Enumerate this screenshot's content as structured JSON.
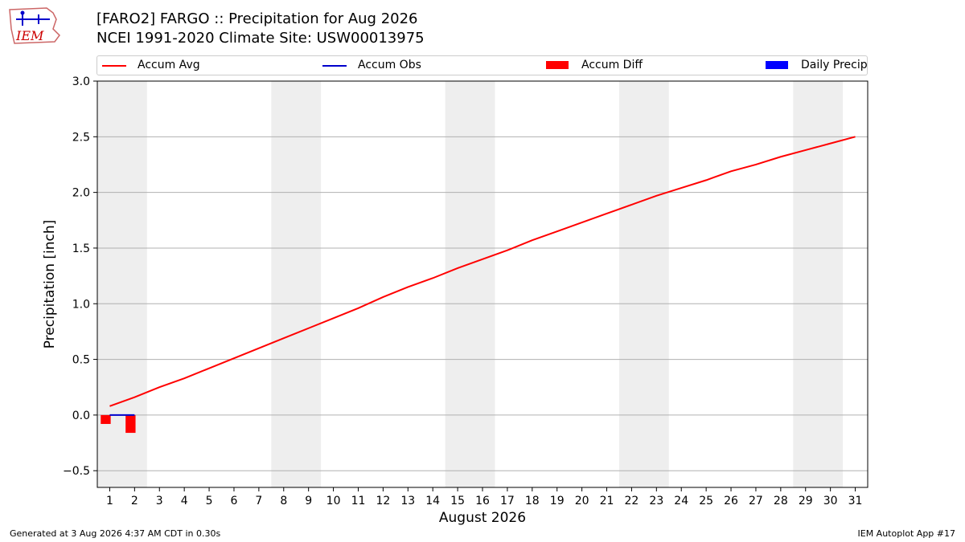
{
  "title_line1": "[FARO2] FARGO :: Precipitation for Aug 2026",
  "title_line2": "NCEI 1991-2020 Climate Site: USW00013975",
  "logo": {
    "text": "IEM",
    "color": "#cc0000",
    "accent": "#0000cc"
  },
  "legend": [
    {
      "label": "Accum Avg",
      "kind": "line",
      "color": "#ff0000"
    },
    {
      "label": "Accum Obs",
      "kind": "line",
      "color": "#0000cc"
    },
    {
      "label": "Accum Diff",
      "kind": "box",
      "color": "#ff0000"
    },
    {
      "label": "Daily Precip",
      "kind": "box",
      "color": "#0000ff"
    }
  ],
  "footer": {
    "left": "Generated at 3 Aug 2026 4:37 AM CDT in 0.30s",
    "right": "IEM Autoplot App #17"
  },
  "chart_data": {
    "type": "line",
    "xlabel": "August 2026",
    "ylabel": "Precipitation [inch]",
    "xlim": [
      0.5,
      31.5
    ],
    "ylim": [
      -0.65,
      3.0
    ],
    "x_ticks": [
      1,
      2,
      3,
      4,
      5,
      6,
      7,
      8,
      9,
      10,
      11,
      12,
      13,
      14,
      15,
      16,
      17,
      18,
      19,
      20,
      21,
      22,
      23,
      24,
      25,
      26,
      27,
      28,
      29,
      30,
      31
    ],
    "y_ticks": [
      -0.5,
      0.0,
      0.5,
      1.0,
      1.5,
      2.0,
      2.5,
      3.0
    ],
    "y_tick_labels": [
      "−0.5",
      "0.0",
      "0.5",
      "1.0",
      "1.5",
      "2.0",
      "2.5",
      "3.0"
    ],
    "grid": "horizontal",
    "legend_position": "top",
    "weekend_shading": {
      "color": "#eeeeee",
      "ranges": [
        [
          0.5,
          2.5
        ],
        [
          7.5,
          9.5
        ],
        [
          14.5,
          16.5
        ],
        [
          21.5,
          23.5
        ],
        [
          28.5,
          30.5
        ]
      ]
    },
    "series": [
      {
        "name": "Accum Avg",
        "type": "line",
        "color": "#ff0000",
        "x": [
          1,
          2,
          3,
          4,
          5,
          6,
          7,
          8,
          9,
          10,
          11,
          12,
          13,
          14,
          15,
          16,
          17,
          18,
          19,
          20,
          21,
          22,
          23,
          24,
          25,
          26,
          27,
          28,
          29,
          30,
          31
        ],
        "values": [
          0.08,
          0.16,
          0.25,
          0.33,
          0.42,
          0.51,
          0.6,
          0.69,
          0.78,
          0.87,
          0.96,
          1.06,
          1.15,
          1.23,
          1.32,
          1.4,
          1.48,
          1.57,
          1.65,
          1.73,
          1.81,
          1.89,
          1.97,
          2.04,
          2.11,
          2.19,
          2.25,
          2.32,
          2.38,
          2.44,
          2.5
        ]
      },
      {
        "name": "Accum Obs",
        "type": "line",
        "color": "#0000cc",
        "x": [
          1,
          2
        ],
        "values": [
          0.0,
          0.0
        ]
      },
      {
        "name": "Accum Diff",
        "type": "bar",
        "color": "#ff0000",
        "x": [
          1,
          2
        ],
        "values": [
          -0.08,
          -0.16
        ]
      },
      {
        "name": "Daily Precip",
        "type": "bar",
        "color": "#0000ff",
        "x": [
          1,
          2
        ],
        "values": [
          0.0,
          0.0
        ]
      }
    ]
  }
}
